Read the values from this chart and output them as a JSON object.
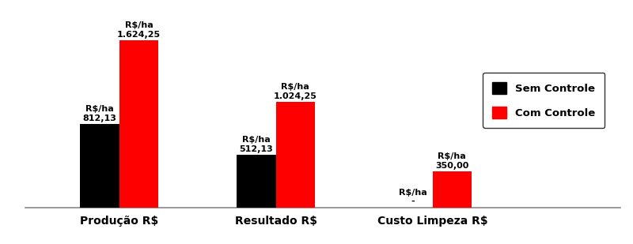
{
  "categories": [
    "Produção R$",
    "Resultado R$",
    "Custo Limpeza R$"
  ],
  "sem_controle": [
    812.13,
    512.13,
    1
  ],
  "com_controle": [
    1624.25,
    1024.25,
    350.0
  ],
  "sem_controle_labels": [
    "R$/ha\n812,13",
    "R$/ha\n512,13",
    "R$/ha\n-"
  ],
  "com_controle_labels": [
    "R$/ha\n1.624,25",
    "R$/ha\n1.024,25",
    "R$/ha\n350,00"
  ],
  "bar_color_sem": "#000000",
  "bar_color_com": "#ff0000",
  "legend_sem": "Sem Controle",
  "legend_com": "Com Controle",
  "ylim": [
    0,
    1900
  ],
  "bar_width": 0.25,
  "background_color": "#ffffff",
  "label_fontsize": 8,
  "axis_label_fontsize": 10,
  "legend_fontsize": 9.5
}
